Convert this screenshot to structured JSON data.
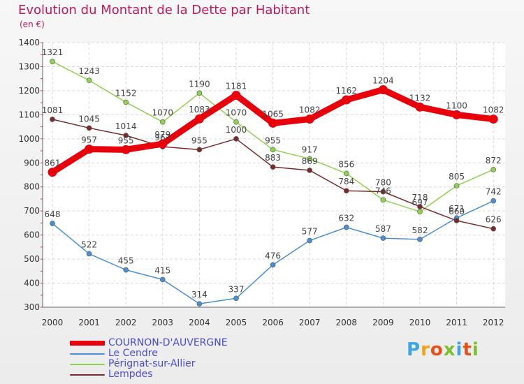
{
  "header": {
    "title": "Evolution du Montant de la Dette par Habitant",
    "subtitle": "(en €)"
  },
  "logo": {
    "text": "Proxiti",
    "colors": [
      "#3ea5e0",
      "#f2a21a",
      "#e94e1b",
      "#7dbf2e",
      "#3ea5e0",
      "#e94e1b",
      "#7dbf2e"
    ]
  },
  "chart_data": {
    "type": "line",
    "title": "Evolution du Montant de la Dette par Habitant",
    "subtitle": "(en €)",
    "x": [
      "2000",
      "2001",
      "2002",
      "2003",
      "2004",
      "2005",
      "2006",
      "2007",
      "2008",
      "2009",
      "2010",
      "2011",
      "2012"
    ],
    "ylim": [
      300,
      1400
    ],
    "yticks": [
      "300",
      "400",
      "500",
      "600",
      "700",
      "800",
      "900",
      "1000",
      "1100",
      "1200",
      "1300",
      "1400"
    ],
    "grid": true,
    "legend_position": "bottom-left",
    "series": [
      {
        "name": "COURNON-D'AUVERGNE",
        "color": "#e8000b",
        "values": [
          861,
          957,
          955,
          979,
          1083,
          1181,
          1065,
          1082,
          1162,
          1204,
          1132,
          1100,
          1082
        ],
        "labels": [
          "861",
          "957",
          "955",
          "979",
          "1083",
          "1181",
          "1065",
          "1082",
          "1162",
          "1204",
          "1132",
          "1100",
          "1082"
        ]
      },
      {
        "name": "Le Cendre",
        "color": "#4a90d0",
        "values": [
          648,
          522,
          455,
          415,
          314,
          337,
          476,
          577,
          632,
          587,
          582,
          671,
          742
        ],
        "labels": [
          "648",
          "522",
          "455",
          "415",
          "314",
          "337",
          "476",
          "577",
          "632",
          "587",
          "582",
          "671",
          "742"
        ]
      },
      {
        "name": "Pérignat-sur-Allier",
        "color": "#8fd24f",
        "values": [
          1321,
          1243,
          1152,
          1070,
          1190,
          1070,
          955,
          917,
          856,
          746,
          697,
          805,
          872
        ],
        "labels": [
          "1321",
          "1243",
          "1152",
          "1070",
          "1190",
          "1070",
          "955",
          "917",
          "856",
          "746",
          "697",
          "805",
          "872"
        ]
      },
      {
        "name": "Lempdes",
        "color": "#7a2a2a",
        "values": [
          1081,
          1045,
          1014,
          967,
          955,
          1000,
          883,
          869,
          784,
          780,
          718,
          660,
          626
        ],
        "labels": [
          "1081",
          "1045",
          "1014",
          "967",
          "955",
          "1000",
          "883",
          "869",
          "784",
          "780",
          "718",
          "660",
          "626"
        ]
      }
    ]
  }
}
